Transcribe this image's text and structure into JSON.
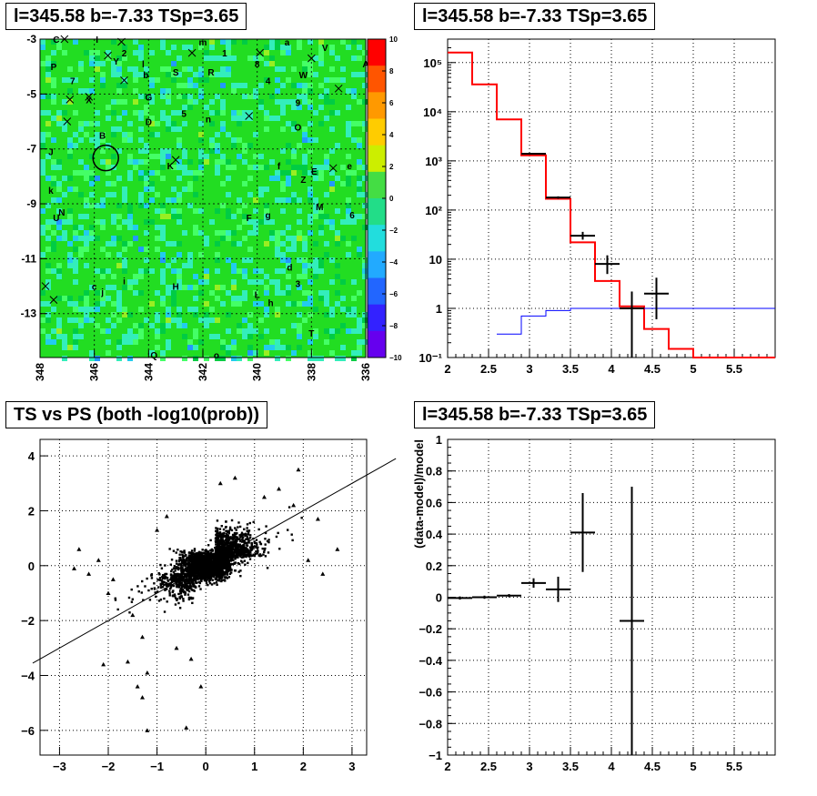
{
  "panels": {
    "map_title": "l=345.58 b=-7.33 TSp=3.65",
    "spectrum_title": "l=345.58 b=-7.33 TSp=3.65",
    "scatter_title": "TS vs PS (both -log10(prob))",
    "residual_title": "l=345.58 b=-7.33 TSp=3.65"
  },
  "colors": {
    "model_line": "#ff0000",
    "background_line": "#0000ff",
    "data": "#000000",
    "map_base": "#22dd22"
  },
  "chart_data": [
    {
      "type": "heatmap",
      "title": "l=345.58 b=-7.33 TSp=3.65",
      "x_ticks": [
        "348",
        "346",
        "344",
        "342",
        "340",
        "338",
        "336"
      ],
      "xlim": [
        348,
        336
      ],
      "y_ticks": [
        "-3",
        "-5",
        "-7",
        "-9",
        "-11",
        "-13"
      ],
      "ylim": [
        -14.6,
        -3
      ],
      "colorbar": {
        "ticks": [
          "10",
          "8",
          "6",
          "4",
          "2",
          "0",
          "−2",
          "−4",
          "−6",
          "−8",
          "−10"
        ],
        "range": [
          -10,
          10
        ]
      },
      "source_labels": [
        {
          "t": "C",
          "l": 347.4,
          "b": -3.0
        },
        {
          "t": "I",
          "l": 345.9,
          "b": -3.0
        },
        {
          "t": "m",
          "l": 342.0,
          "b": -3.1
        },
        {
          "t": "a",
          "l": 338.9,
          "b": -3.1
        },
        {
          "t": "V",
          "l": 337.5,
          "b": -3.3
        },
        {
          "t": "A",
          "l": 336.0,
          "b": -3.9
        },
        {
          "t": "P",
          "l": 347.5,
          "b": -4.0
        },
        {
          "t": "2",
          "l": 344.9,
          "b": -3.5
        },
        {
          "t": "Y",
          "l": 345.2,
          "b": -3.8
        },
        {
          "t": "1",
          "l": 341.2,
          "b": -3.5
        },
        {
          "t": "8",
          "l": 340.0,
          "b": -3.9
        },
        {
          "t": "l",
          "l": 344.2,
          "b": -3.9
        },
        {
          "t": "b",
          "l": 344.1,
          "b": -4.3
        },
        {
          "t": "S",
          "l": 343.0,
          "b": -4.2
        },
        {
          "t": "R",
          "l": 341.7,
          "b": -4.2
        },
        {
          "t": "4",
          "l": 339.6,
          "b": -4.5
        },
        {
          "t": "W",
          "l": 338.3,
          "b": -4.3
        },
        {
          "t": "7",
          "l": 346.8,
          "b": -4.5
        },
        {
          "t": "X",
          "l": 346.2,
          "b": -5.2
        },
        {
          "t": "G",
          "l": 344.0,
          "b": -5.1
        },
        {
          "t": "9",
          "l": 338.5,
          "b": -5.3
        },
        {
          "t": "5",
          "l": 342.7,
          "b": -5.7
        },
        {
          "t": "n",
          "l": 341.8,
          "b": -5.9
        },
        {
          "t": "D",
          "l": 344.0,
          "b": -6.0
        },
        {
          "t": "O",
          "l": 338.5,
          "b": -6.2
        },
        {
          "t": "B",
          "l": 345.7,
          "b": -6.5
        },
        {
          "t": "J",
          "l": 347.6,
          "b": -7.1
        },
        {
          "t": "f",
          "l": 339.2,
          "b": -7.6
        },
        {
          "t": "K",
          "l": 343.2,
          "b": -7.6
        },
        {
          "t": "E",
          "l": 337.9,
          "b": -7.8
        },
        {
          "t": "e",
          "l": 336.6,
          "b": -7.6
        },
        {
          "t": "Z",
          "l": 338.3,
          "b": -8.1
        },
        {
          "t": "k",
          "l": 347.6,
          "b": -8.5
        },
        {
          "t": "M",
          "l": 337.7,
          "b": -9.1
        },
        {
          "t": "6",
          "l": 336.5,
          "b": -9.4
        },
        {
          "t": "N",
          "l": 347.2,
          "b": -9.3
        },
        {
          "t": "U",
          "l": 347.4,
          "b": -9.5
        },
        {
          "t": "F",
          "l": 340.3,
          "b": -9.5
        },
        {
          "t": "g",
          "l": 339.6,
          "b": -9.4
        },
        {
          "t": "d",
          "l": 338.8,
          "b": -11.3
        },
        {
          "t": "c",
          "l": 346.0,
          "b": -12.0
        },
        {
          "t": "i",
          "l": 344.9,
          "b": -11.8
        },
        {
          "t": "H",
          "l": 343.0,
          "b": -12.0
        },
        {
          "t": "j",
          "l": 345.7,
          "b": -12.2
        },
        {
          "t": "3",
          "l": 338.5,
          "b": -11.9
        },
        {
          "t": "L",
          "l": 340.0,
          "b": -12.3
        },
        {
          "t": "h",
          "l": 339.5,
          "b": -12.6
        },
        {
          "t": "T",
          "l": 338.0,
          "b": -13.7
        },
        {
          "t": "Q",
          "l": 343.8,
          "b": -14.5
        },
        {
          "t": "o",
          "l": 341.5,
          "b": -14.5
        }
      ],
      "x_markers": [
        {
          "l": 347.1,
          "b": -3.0
        },
        {
          "l": 345.0,
          "b": -3.1
        },
        {
          "l": 345.5,
          "b": -3.6
        },
        {
          "l": 342.4,
          "b": -3.5
        },
        {
          "l": 339.9,
          "b": -3.5
        },
        {
          "l": 338.0,
          "b": -3.7
        },
        {
          "l": 344.9,
          "b": -4.5
        },
        {
          "l": 346.2,
          "b": -5.1
        },
        {
          "l": 337.0,
          "b": -4.8
        },
        {
          "l": 346.9,
          "b": -5.2
        },
        {
          "l": 347.0,
          "b": -6.0
        },
        {
          "l": 340.3,
          "b": -5.8
        },
        {
          "l": 343.0,
          "b": -7.4
        },
        {
          "l": 337.2,
          "b": -7.7
        },
        {
          "l": 347.8,
          "b": -12.0
        },
        {
          "l": 347.5,
          "b": -12.5
        }
      ],
      "circle": {
        "l": 345.58,
        "b": -7.33
      }
    },
    {
      "type": "line",
      "title": "l=345.58 b=-7.33 TSp=3.65",
      "log_y": true,
      "xlim": [
        2,
        6
      ],
      "ylim": [
        0.1,
        300000
      ],
      "x_ticks": [
        "2",
        "2.5",
        "3",
        "3.5",
        "4",
        "4.5",
        "5",
        "5.5"
      ],
      "y_ticks": [
        "10⁻¹",
        "1",
        "10",
        "10²",
        "10³",
        "10⁴",
        "10⁵"
      ],
      "series": [
        {
          "name": "",
          "style": "step",
          "edges": [
            2,
            2.3,
            2.6,
            2.9,
            3.2,
            3.5,
            3.8,
            4.1,
            4.4,
            4.7,
            5.0,
            5.3,
            6.0
          ],
          "values": [
            160000,
            36000,
            7000,
            1300,
            170,
            22,
            3.6,
            1.1,
            0.38,
            0.15,
            0.1,
            0.1
          ]
        },
        {
          "name": "",
          "style": "step",
          "edges": [
            2.6,
            2.9,
            3.2,
            3.5,
            6.0
          ],
          "values": [
            0.3,
            0.7,
            0.9,
            1.0
          ]
        }
      ],
      "data_points": [
        {
          "x": 3.05,
          "y": 1400,
          "xerr": 0.15,
          "ylo": 1350,
          "yhi": 1450
        },
        {
          "x": 3.35,
          "y": 180,
          "xerr": 0.15,
          "ylo": 170,
          "yhi": 190
        },
        {
          "x": 3.65,
          "y": 30,
          "xerr": 0.15,
          "ylo": 25,
          "yhi": 36
        },
        {
          "x": 3.95,
          "y": 8,
          "xerr": 0.15,
          "ylo": 5,
          "yhi": 12
        },
        {
          "x": 4.25,
          "y": 1.0,
          "xerr": 0.15,
          "ylo": 0.1,
          "yhi": 2.2
        },
        {
          "x": 4.55,
          "y": 2.0,
          "xerr": 0.15,
          "ylo": 0.6,
          "yhi": 4.2
        }
      ]
    },
    {
      "type": "scatter",
      "title": "TS vs PS (both -log10(prob))",
      "xlim": [
        -3.4,
        3.3
      ],
      "ylim": [
        -6.9,
        4.6
      ],
      "x_ticks": [
        "−3",
        "−2",
        "−1",
        "0",
        "1",
        "2",
        "3"
      ],
      "y_ticks": [
        "−6",
        "−4",
        "−2",
        "0",
        "2",
        "4"
      ],
      "reference_line": {
        "slope": 1,
        "intercept": 0
      },
      "outliers": [
        [
          -2.6,
          0.6
        ],
        [
          -2.2,
          0.2
        ],
        [
          -2.4,
          -0.3
        ],
        [
          -1.9,
          -0.5
        ],
        [
          -2.0,
          -1.0
        ],
        [
          -1.5,
          -1.8
        ],
        [
          -1.3,
          -2.6
        ],
        [
          -1.6,
          -3.5
        ],
        [
          -1.2,
          -3.9
        ],
        [
          -1.4,
          -4.4
        ],
        [
          -1.3,
          -4.8
        ],
        [
          -1.2,
          -6.0
        ],
        [
          -0.4,
          -5.9
        ],
        [
          -0.1,
          -4.4
        ],
        [
          -2.1,
          -3.6
        ],
        [
          -1.0,
          1.3
        ],
        [
          -0.8,
          1.8
        ],
        [
          1.5,
          2.8
        ],
        [
          2.3,
          1.7
        ],
        [
          2.7,
          0.6
        ],
        [
          2.4,
          -0.3
        ],
        [
          1.9,
          3.5
        ],
        [
          0.6,
          3.2
        ],
        [
          0.3,
          3.0
        ],
        [
          1.8,
          2.2
        ],
        [
          2.1,
          0.2
        ],
        [
          -2.7,
          -0.1
        ],
        [
          -0.6,
          -3.0
        ],
        [
          -0.3,
          -3.4
        ],
        [
          1.2,
          2.5
        ]
      ]
    },
    {
      "type": "line",
      "title": "l=345.58 b=-7.33 TSp=3.65",
      "xlim": [
        2,
        6
      ],
      "ylim": [
        -1,
        1
      ],
      "ylabel": "(data-model)/model",
      "x_ticks": [
        "2",
        "2.5",
        "3",
        "3.5",
        "4",
        "4.5",
        "5",
        "5.5"
      ],
      "y_ticks": [
        "−1",
        "−0.8",
        "−0.6",
        "−0.4",
        "−0.2",
        "0",
        "0.2",
        "0.4",
        "0.6",
        "0.8",
        "1"
      ],
      "data_points": [
        {
          "x": 2.15,
          "y": -0.005,
          "xerr": 0.15,
          "ylo": -0.015,
          "yhi": 0.005
        },
        {
          "x": 2.45,
          "y": 0.0,
          "xerr": 0.15,
          "ylo": -0.01,
          "yhi": 0.01
        },
        {
          "x": 2.75,
          "y": 0.01,
          "xerr": 0.15,
          "ylo": 0.0,
          "yhi": 0.02
        },
        {
          "x": 3.05,
          "y": 0.09,
          "xerr": 0.15,
          "ylo": 0.06,
          "yhi": 0.12
        },
        {
          "x": 3.35,
          "y": 0.05,
          "xerr": 0.15,
          "ylo": -0.03,
          "yhi": 0.13
        },
        {
          "x": 3.65,
          "y": 0.41,
          "xerr": 0.15,
          "ylo": 0.16,
          "yhi": 0.66
        },
        {
          "x": 4.25,
          "y": -0.15,
          "xerr": 0.15,
          "ylo": -1.0,
          "yhi": 0.7
        }
      ]
    }
  ]
}
